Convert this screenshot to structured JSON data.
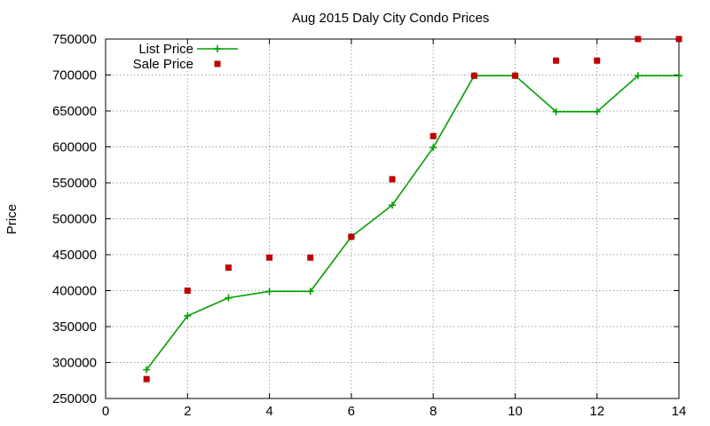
{
  "chart_data": {
    "type": "line",
    "title": "Aug 2015 Daly City Condo Prices",
    "xlabel": "",
    "ylabel": "Price",
    "xlim": [
      0,
      14
    ],
    "ylim": [
      250000,
      750000
    ],
    "xticks": [
      0,
      2,
      4,
      6,
      8,
      10,
      12,
      14
    ],
    "yticks": [
      250000,
      300000,
      350000,
      400000,
      450000,
      500000,
      550000,
      600000,
      650000,
      700000,
      750000
    ],
    "grid": true,
    "legend_position": "top-left",
    "series": [
      {
        "name": "List Price",
        "style": "line-with-plus-markers",
        "color": "#00a000",
        "x": [
          1,
          2,
          3,
          4,
          5,
          6,
          7,
          8,
          9,
          10,
          11,
          12,
          13,
          14
        ],
        "y": [
          290000,
          365000,
          390000,
          399000,
          399000,
          475000,
          519000,
          599000,
          699000,
          699000,
          649000,
          649000,
          699000,
          699000
        ]
      },
      {
        "name": "Sale Price",
        "style": "square-markers",
        "color": "#c00000",
        "x": [
          1,
          2,
          3,
          4,
          5,
          6,
          7,
          8,
          9,
          10,
          11,
          12,
          13,
          14
        ],
        "y": [
          277000,
          400000,
          432000,
          446000,
          446000,
          475000,
          555000,
          615000,
          699000,
          699000,
          720000,
          720000,
          750000,
          750000
        ]
      }
    ]
  }
}
